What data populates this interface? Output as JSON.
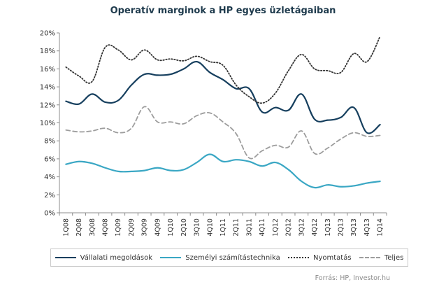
{
  "chart_data": {
    "type": "line",
    "title": "Operatív marginok a HP egyes üzletágaiban",
    "categories": [
      "1Q08",
      "2Q08",
      "3Q08",
      "4Q08",
      "1Q09",
      "2Q09",
      "3Q09",
      "4Q09",
      "1Q10",
      "2Q10",
      "3Q10",
      "4Q10",
      "1Q11",
      "2Q11",
      "3Q11",
      "4Q11",
      "1Q12",
      "2Q12",
      "3Q12",
      "4Q12",
      "1Q13",
      "2Q13",
      "3Q13",
      "4Q13",
      "1Q14"
    ],
    "ylim": [
      0,
      20
    ],
    "yticks": [
      "0%",
      "2%",
      "4%",
      "6%",
      "8%",
      "10%",
      "12%",
      "14%",
      "16%",
      "18%",
      "20%"
    ],
    "grid": false,
    "legend_position": "bottom",
    "series": [
      {
        "name": "Vállalati megoldások",
        "color": "#163f5e",
        "style": "solid",
        "values": [
          12.4,
          12.1,
          13.2,
          12.3,
          12.5,
          14.2,
          15.4,
          15.3,
          15.4,
          16.0,
          16.8,
          15.6,
          14.8,
          13.8,
          13.8,
          11.2,
          11.7,
          11.4,
          13.2,
          10.4,
          10.3,
          10.6,
          11.7,
          8.9,
          9.8
        ]
      },
      {
        "name": "Személyi számítástechnika",
        "color": "#3aa7c4",
        "style": "solid",
        "values": [
          5.4,
          5.7,
          5.5,
          5.0,
          4.6,
          4.6,
          4.7,
          5.0,
          4.7,
          4.8,
          5.6,
          6.5,
          5.7,
          5.9,
          5.7,
          5.2,
          5.6,
          4.8,
          3.5,
          2.8,
          3.1,
          2.9,
          3.0,
          3.3,
          3.5
        ]
      },
      {
        "name": "Nyomtatás",
        "color": "#333333",
        "style": "dotted",
        "values": [
          16.2,
          15.2,
          14.6,
          18.4,
          18.1,
          17.0,
          18.1,
          17.0,
          17.1,
          16.9,
          17.4,
          16.8,
          16.4,
          14.2,
          12.9,
          12.2,
          13.3,
          15.8,
          17.6,
          16.0,
          15.8,
          15.6,
          17.7,
          16.8,
          19.6
        ]
      },
      {
        "name": "Teljes",
        "color": "#9d9d9d",
        "style": "dashed",
        "values": [
          9.2,
          9.0,
          9.1,
          9.4,
          8.9,
          9.4,
          11.8,
          10.1,
          10.1,
          9.9,
          10.8,
          11.1,
          10.1,
          8.8,
          6.1,
          6.9,
          7.5,
          7.3,
          9.1,
          6.6,
          7.2,
          8.2,
          8.9,
          8.5,
          8.6
        ]
      }
    ]
  },
  "source": "Forrás: HP, Investor.hu"
}
